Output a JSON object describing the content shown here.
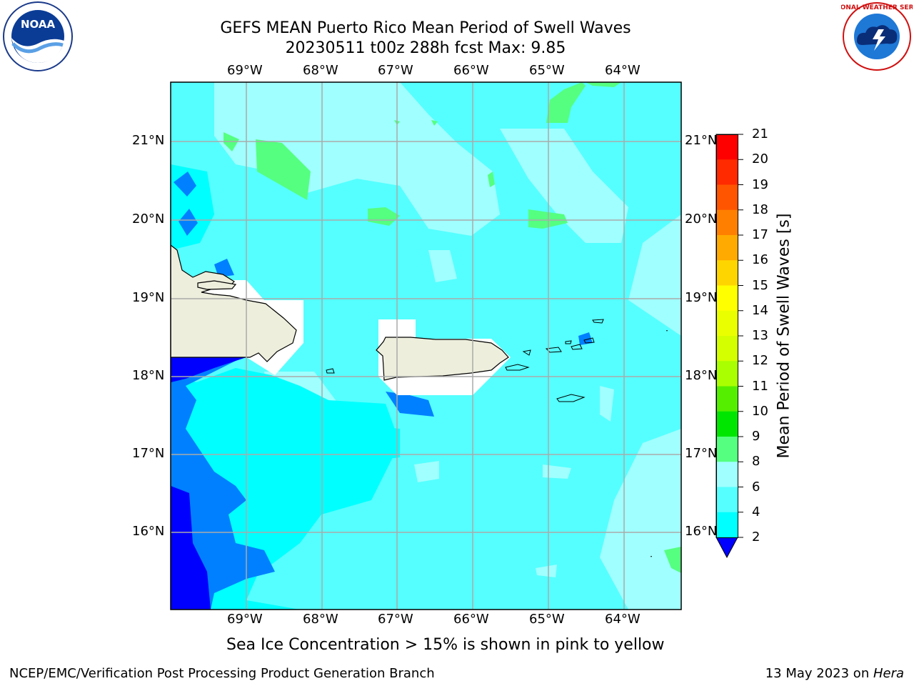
{
  "title": {
    "line1": "GEFS MEAN Puerto Rico Mean Period of Swell Waves",
    "line2": "20230511 t00z 288h fcst   Max: 9.85"
  },
  "map": {
    "lon_labels": [
      "69°W",
      "68°W",
      "67°W",
      "66°W",
      "65°W",
      "64°W"
    ],
    "lat_labels": [
      "21°N",
      "20°N",
      "19°N",
      "18°N",
      "17°N",
      "16°N"
    ]
  },
  "colorbar": {
    "label": "Mean Period of Swell Waves [s]",
    "ticks": [
      "21",
      "20",
      "19",
      "18",
      "17",
      "16",
      "15",
      "14",
      "13",
      "12",
      "11",
      "10",
      "9",
      "8",
      "6",
      "4",
      "2"
    ],
    "colors": [
      "#ff0000",
      "#ff2a00",
      "#ff5500",
      "#ff8000",
      "#ffaa00",
      "#ffd500",
      "#ffff00",
      "#eaff00",
      "#d4ff00",
      "#aaff00",
      "#55ee00",
      "#00e600",
      "#55ff80",
      "#a0ffff",
      "#55ffff",
      "#00ffff",
      "#0080ff",
      "#0000ff"
    ]
  },
  "note": "Sea Ice Concentration > 15% is shown in pink to yellow",
  "footer": {
    "left": "NCEP/EMC/Verification Post Processing Product Generation Branch",
    "right_prefix": "13 May 2023 on ",
    "right_host": "Hera"
  },
  "logos": {
    "noaa": {
      "text": "NOAA"
    },
    "nws": {
      "text": "NATIONAL WEATHER SERVICE"
    }
  }
}
